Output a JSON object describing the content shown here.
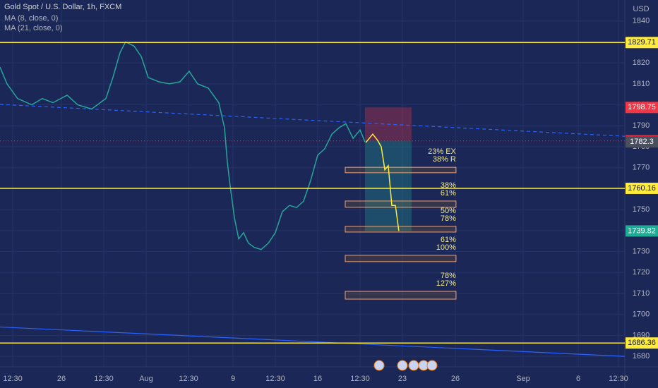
{
  "chart_data": {
    "type": "line",
    "title": "Gold Spot / U.S. Dollar, 1h, FXCM",
    "indicators": [
      "MA (8, close, 0)",
      "MA (21, close, 0)"
    ],
    "y_unit": "USD",
    "xlim": [
      0,
      295
    ],
    "ylim": [
      1675,
      1850
    ],
    "yticks": [
      1680,
      1690,
      1700,
      1710,
      1720,
      1730,
      1740,
      1750,
      1760,
      1770,
      1780,
      1790,
      1800,
      1810,
      1820,
      1830,
      1840
    ],
    "xticks": [
      {
        "value": 6,
        "label": "12:30"
      },
      {
        "value": 29,
        "label": "26"
      },
      {
        "value": 49,
        "label": "12:30"
      },
      {
        "value": 69,
        "label": "Aug"
      },
      {
        "value": 89,
        "label": "12:30"
      },
      {
        "value": 110,
        "label": "9"
      },
      {
        "value": 130,
        "label": "12:30"
      },
      {
        "value": 150,
        "label": "16"
      },
      {
        "value": 170,
        "label": "12:30"
      },
      {
        "value": 190,
        "label": "23"
      },
      {
        "value": 215,
        "label": "26"
      },
      {
        "value": 247,
        "label": "Sep"
      },
      {
        "value": 273,
        "label": "6"
      },
      {
        "value": 292,
        "label": "12:30"
      }
    ],
    "grid": true,
    "series": [
      {
        "name": "Gold Spot / U.S. Dollar",
        "color": "#26a69a",
        "x": [
          0,
          3.3,
          8.3,
          15,
          20,
          25,
          31.7,
          36.7,
          43.3,
          50,
          53.3,
          56.7,
          59.3,
          63.3,
          66.7,
          70,
          75,
          80,
          85,
          89.3,
          93.3,
          98.3,
          103.3,
          106,
          107.3,
          108.7,
          110.7,
          112.7,
          115,
          117.3,
          120,
          123.3,
          126.7,
          130,
          133.3,
          136.7,
          140,
          143.3,
          146.7,
          150,
          153.3,
          156.7,
          160,
          163.3,
          166.7,
          170,
          172.3
        ],
        "values": [
          1818,
          1810,
          1803,
          1800,
          1803,
          1801,
          1804.6,
          1800,
          1798,
          1803,
          1813,
          1825,
          1830,
          1828,
          1823,
          1813,
          1811,
          1810,
          1811,
          1816,
          1810,
          1808,
          1801,
          1789,
          1773,
          1761,
          1746,
          1736,
          1739,
          1734,
          1732,
          1731,
          1734,
          1739,
          1749,
          1752,
          1751,
          1754,
          1764,
          1776,
          1779,
          1786,
          1789,
          1791,
          1784,
          1788,
          1782.3
        ]
      }
    ],
    "projection": {
      "color": "#ffeb3b",
      "x": [
        172.7,
        176,
        178.3,
        180,
        181.7,
        183.3,
        185,
        186.7,
        188.3
      ],
      "values": [
        1782,
        1786,
        1783,
        1780,
        1769,
        1771,
        1752,
        1752,
        1739.8
      ]
    },
    "levels": {
      "color": "#ffeb3b",
      "values": [
        1829.71,
        1760.16,
        1686.36
      ]
    },
    "trendlines": [
      {
        "color": "#2962ff",
        "dashed": true,
        "x": [
          0,
          295
        ],
        "values": [
          1800.2,
          1785
        ]
      },
      {
        "color": "#2962ff",
        "dashed": false,
        "x": [
          0,
          295
        ],
        "values": [
          1694,
          1680
        ]
      }
    ],
    "position": {
      "x": [
        172.3,
        194.3
      ],
      "stop": 1798.75,
      "entry": 1782.79,
      "target": 1739.82
    },
    "last_price": 1782.3,
    "zones": {
      "x": [
        163,
        215.3
      ],
      "items": [
        {
          "ylim": [
            1767.6,
            1770.2
          ],
          "labels": [
            "23% EX",
            "38% R"
          ]
        },
        {
          "ylim": [
            1751.1,
            1754.1
          ],
          "labels": [
            "38%",
            "61%"
          ]
        },
        {
          "ylim": [
            1739.3,
            1742
          ],
          "labels": [
            "50%",
            "78%"
          ]
        },
        {
          "ylim": [
            1725.2,
            1728.2
          ],
          "labels": [
            "61%",
            "100%"
          ]
        },
        {
          "ylim": [
            1707.3,
            1711
          ],
          "labels": [
            "78%",
            "127%"
          ]
        }
      ]
    }
  }
}
